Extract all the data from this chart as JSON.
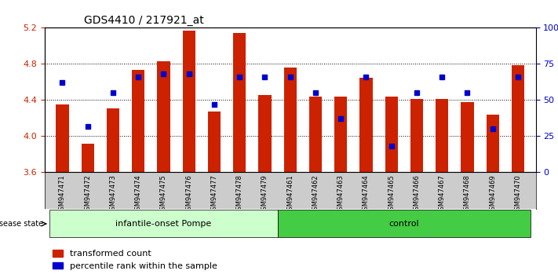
{
  "title": "GDS4410 / 217921_at",
  "samples": [
    "GSM947471",
    "GSM947472",
    "GSM947473",
    "GSM947474",
    "GSM947475",
    "GSM947476",
    "GSM947477",
    "GSM947478",
    "GSM947479",
    "GSM947461",
    "GSM947462",
    "GSM947463",
    "GSM947464",
    "GSM947465",
    "GSM947466",
    "GSM947467",
    "GSM947468",
    "GSM947469",
    "GSM947470"
  ],
  "red_values": [
    4.35,
    3.92,
    4.31,
    4.73,
    4.83,
    5.17,
    4.27,
    5.14,
    4.46,
    4.76,
    4.44,
    4.44,
    4.65,
    4.44,
    4.41,
    4.41,
    4.38,
    4.24,
    4.79
  ],
  "blue_values": [
    62,
    32,
    55,
    66,
    68,
    68,
    47,
    66,
    66,
    66,
    55,
    37,
    66,
    18,
    55,
    66,
    55,
    30,
    66
  ],
  "group_labels": [
    "infantile-onset Pompe",
    "control"
  ],
  "group_sizes": [
    9,
    10
  ],
  "group_colors": [
    "#aaffaa",
    "#00cc00"
  ],
  "ymin": 3.6,
  "ymax": 5.2,
  "yticks": [
    3.6,
    4.0,
    4.4,
    4.8,
    5.2
  ],
  "right_yticks": [
    0,
    25,
    50,
    75,
    100
  ],
  "bar_color": "#cc2200",
  "dot_color": "#0000cc",
  "grid_color": "#000000",
  "background_color": "#ffffff",
  "tick_area_color": "#dddddd"
}
